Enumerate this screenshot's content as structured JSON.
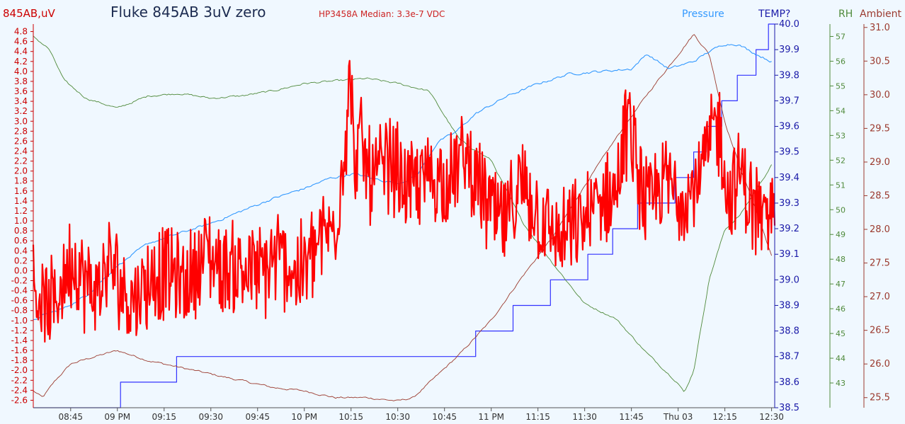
{
  "title": "Fluke 845AB 3uV zero",
  "subtitle": "HP3458A Median: 3.3e-7 VDC",
  "colors": {
    "background": "#f0f8ff",
    "main": "#ff0000",
    "main_axis": "#cc0000",
    "pressure": "#3399ff",
    "temp": "#3333ff",
    "temp_axis": "#1a1aa8",
    "rh": "#4f8a3b",
    "ambient": "#9b3a2e"
  },
  "chart_data": {
    "type": "line",
    "grid": false,
    "legend": "none",
    "x_axis": {
      "ticks": [
        "08:45",
        "09 PM",
        "09:15",
        "09:30",
        "09:45",
        "10 PM",
        "10:15",
        "10:30",
        "10:45",
        "11 PM",
        "11:15",
        "11:30",
        "11:45",
        "Thu 03",
        "12:15",
        "12:30"
      ],
      "range": [
        "08:33",
        "12:31"
      ]
    },
    "axes": {
      "main": {
        "label": "845AB,uV",
        "ylim": [
          -2.75,
          4.95
        ],
        "ticks": [
          "-2.6",
          "-2.4",
          "-2.2",
          "-2.0",
          "-1.8",
          "-1.6",
          "-1.4",
          "-1.2",
          "-1.0",
          "-0.8",
          "-0.6",
          "-0.4",
          "-0.2",
          "0.0",
          "0.2",
          "0.4",
          "0.6",
          "0.8",
          "1.0",
          "1.2",
          "1.4",
          "1.6",
          "1.8",
          "2.0",
          "2.2",
          "2.4",
          "2.6",
          "2.8",
          "3.0",
          "3.2",
          "3.4",
          "3.6",
          "3.8",
          "4.0",
          "4.2",
          "4.4",
          "4.6",
          "4.8"
        ]
      },
      "pressure": {
        "label": "Pressure"
      },
      "temp": {
        "label": "TEMP?",
        "ylim": [
          38.5,
          40.0
        ],
        "ticks": [
          "38.5",
          "38.6",
          "38.7",
          "38.8",
          "38.9",
          "39.0",
          "39.1",
          "39.2",
          "39.3",
          "39.4",
          "39.5",
          "39.6",
          "39.7",
          "39.8",
          "39.9",
          "40.0"
        ]
      },
      "rh": {
        "label": "RH",
        "ylim": [
          42.0,
          57.5
        ],
        "ticks": [
          "43",
          "44",
          "45",
          "46",
          "47",
          "48",
          "49",
          "50",
          "51",
          "52",
          "53",
          "54",
          "55",
          "56",
          "57"
        ]
      },
      "ambient": {
        "label": "Ambient",
        "ylim": [
          25.35,
          31.05
        ],
        "ticks": [
          "25.5",
          "26.0",
          "26.5",
          "27.0",
          "27.5",
          "28.0",
          "28.5",
          "29.0",
          "29.5",
          "30.0",
          "30.5",
          "31.0"
        ]
      }
    },
    "series": [
      {
        "key": "main",
        "axis": "main",
        "x": [
          "08:33",
          "08:38",
          "08:45",
          "08:52",
          "08:58",
          "09:04",
          "09:10",
          "09:16",
          "09:22",
          "09:28",
          "09:34",
          "09:40",
          "09:46",
          "09:52",
          "09:58",
          "10:04",
          "10:10",
          "10:14",
          "10:15",
          "10:16",
          "10:18",
          "10:22",
          "10:28",
          "10:34",
          "10:40",
          "10:46",
          "10:52",
          "10:58",
          "11:04",
          "11:10",
          "11:16",
          "11:22",
          "11:28",
          "11:34",
          "11:40",
          "11:44",
          "11:46",
          "11:50",
          "11:56",
          "12:02",
          "12:08",
          "12:12",
          "12:14",
          "12:16",
          "12:20",
          "12:24",
          "12:28",
          "12:31"
        ],
        "values": [
          -0.2,
          -0.9,
          0.2,
          -0.5,
          0.1,
          -0.6,
          -0.2,
          0.0,
          -0.3,
          0.4,
          0.0,
          0.1,
          -0.1,
          0.3,
          -0.1,
          0.5,
          0.9,
          3.2,
          4.0,
          1.9,
          2.6,
          1.8,
          2.2,
          1.6,
          1.9,
          1.8,
          2.3,
          1.4,
          0.9,
          1.7,
          1.0,
          0.6,
          0.9,
          1.3,
          1.6,
          3.0,
          2.3,
          1.2,
          1.8,
          1.5,
          2.0,
          3.0,
          2.6,
          1.4,
          1.9,
          1.3,
          0.9,
          1.5
        ],
        "noise": 0.55
      },
      {
        "key": "pressure",
        "axis": "pressure",
        "x": [
          "08:33",
          "08:36",
          "08:43",
          "08:50",
          "09:00",
          "09:10",
          "09:20",
          "09:30",
          "09:40",
          "09:50",
          "10:00",
          "10:08",
          "10:16",
          "10:22",
          "10:30",
          "10:36",
          "10:43",
          "10:48",
          "10:55",
          "11:05",
          "11:15",
          "11:25",
          "11:35",
          "11:45",
          "11:50",
          "11:57",
          "12:05",
          "12:10",
          "12:15",
          "12:19",
          "12:25",
          "12:30"
        ],
        "values": [
          -1.0,
          -0.9,
          -0.75,
          -0.5,
          0.1,
          0.55,
          0.75,
          0.95,
          1.2,
          1.45,
          1.65,
          1.85,
          1.95,
          1.85,
          1.75,
          1.9,
          2.6,
          2.75,
          3.15,
          3.5,
          3.75,
          3.95,
          4.0,
          4.05,
          4.35,
          4.05,
          4.2,
          4.4,
          4.55,
          4.55,
          4.35,
          4.2
        ],
        "noise": 0.05
      },
      {
        "key": "temp",
        "axis": "temp",
        "step": true,
        "x": [
          "08:33",
          "09:01",
          "09:19",
          "10:55",
          "11:07",
          "11:19",
          "11:31",
          "11:39",
          "11:47",
          "11:59",
          "12:05",
          "12:09",
          "12:14",
          "12:19",
          "12:25",
          "12:29",
          "12:31"
        ],
        "values": [
          38.5,
          38.6,
          38.7,
          38.8,
          38.9,
          39.0,
          39.1,
          39.2,
          39.3,
          39.4,
          39.5,
          39.6,
          39.7,
          39.8,
          39.9,
          40.0,
          40.0
        ]
      },
      {
        "key": "rh",
        "axis": "rh",
        "x": [
          "08:33",
          "08:38",
          "08:43",
          "08:50",
          "09:00",
          "09:10",
          "09:20",
          "09:30",
          "09:40",
          "09:50",
          "10:00",
          "10:10",
          "10:20",
          "10:30",
          "10:40",
          "10:50",
          "11:00",
          "11:10",
          "11:20",
          "11:30",
          "11:40",
          "11:50",
          "12:00",
          "12:02",
          "12:05",
          "12:10",
          "12:15",
          "12:20",
          "12:25",
          "12:30"
        ],
        "values": [
          57.0,
          56.5,
          55.2,
          54.5,
          54.1,
          54.6,
          54.7,
          54.5,
          54.6,
          54.8,
          55.1,
          55.2,
          55.3,
          55.1,
          54.8,
          52.8,
          52.0,
          49.5,
          47.8,
          46.2,
          45.6,
          44.2,
          43.0,
          42.6,
          43.5,
          47.2,
          49.2,
          49.8,
          50.8,
          51.8
        ],
        "noise": 0.08
      },
      {
        "key": "ambient",
        "axis": "ambient",
        "x": [
          "08:33",
          "08:36",
          "08:40",
          "08:45",
          "08:52",
          "09:00",
          "09:10",
          "09:20",
          "09:30",
          "09:40",
          "09:50",
          "10:00",
          "10:10",
          "10:20",
          "10:30",
          "10:35",
          "10:42",
          "10:50",
          "11:00",
          "11:10",
          "11:20",
          "11:30",
          "11:40",
          "11:50",
          "12:00",
          "12:05",
          "12:10",
          "12:15",
          "12:20",
          "12:25",
          "12:30"
        ],
        "values": [
          25.6,
          25.5,
          25.75,
          26.0,
          26.1,
          26.2,
          26.05,
          25.95,
          25.85,
          25.75,
          25.65,
          25.6,
          25.5,
          25.5,
          25.45,
          25.5,
          25.8,
          26.15,
          26.65,
          27.3,
          27.9,
          28.65,
          29.35,
          30.0,
          30.6,
          30.9,
          30.6,
          29.6,
          28.9,
          28.3,
          27.6
        ],
        "noise": 0.03
      }
    ]
  }
}
